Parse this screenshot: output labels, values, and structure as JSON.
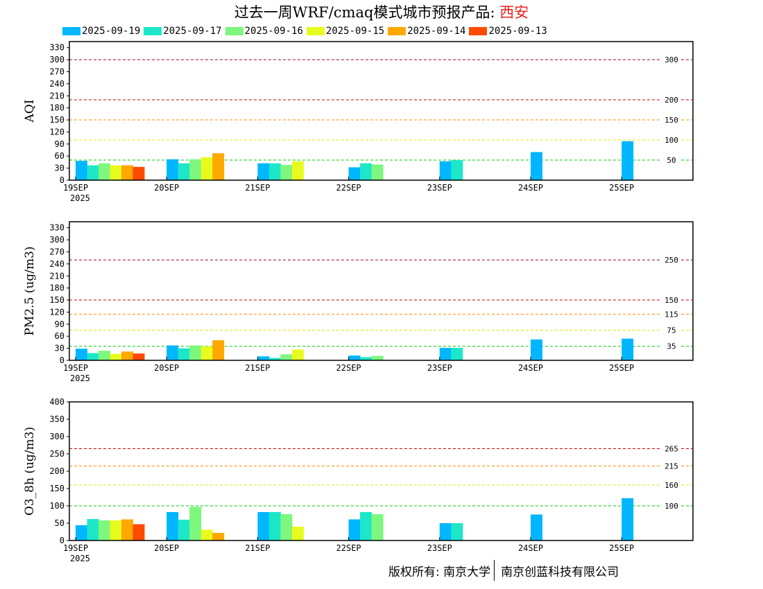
{
  "title": {
    "prefix": "过去一周WRF/cmaq模式城市预报产品: ",
    "city": "西安"
  },
  "legend": [
    {
      "label": "2025-09-19",
      "color": "#00b7ff"
    },
    {
      "label": "2025-09-17",
      "color": "#1de7c9"
    },
    {
      "label": "2025-09-16",
      "color": "#7df77d"
    },
    {
      "label": "2025-09-15",
      "color": "#e8fb1e"
    },
    {
      "label": "2025-09-14",
      "color": "#ffa800"
    },
    {
      "label": "2025-09-13",
      "color": "#ff4a00"
    }
  ],
  "footer": {
    "left": "版权所有: 南京大学",
    "right": "南京创蓝科技有限公司"
  },
  "chart_data": [
    {
      "type": "bar",
      "ylabel": "AQI",
      "ylim": [
        0,
        345
      ],
      "yticks": [
        0,
        30,
        60,
        90,
        120,
        150,
        180,
        210,
        240,
        270,
        300,
        330
      ],
      "categories": [
        "19SEP",
        "20SEP",
        "21SEP",
        "22SEP",
        "23SEP",
        "24SEP",
        "25SEP"
      ],
      "first_date_year": "2025",
      "thresholds": [
        {
          "value": 50,
          "label": "50",
          "color": "#00cc00"
        },
        {
          "value": 100,
          "label": "100",
          "color": "#e6e600"
        },
        {
          "value": 150,
          "label": "150",
          "color": "#ff8c00"
        },
        {
          "value": 200,
          "label": "200",
          "color": "#cc0000"
        },
        {
          "value": 300,
          "label": "300",
          "color": "#990044"
        }
      ],
      "series": [
        {
          "name": "2025-09-19",
          "values": [
            48,
            52,
            42,
            32,
            47,
            70,
            97
          ]
        },
        {
          "name": "2025-09-17",
          "values": [
            37,
            42,
            42,
            42,
            50,
            null,
            null
          ]
        },
        {
          "name": "2025-09-16",
          "values": [
            42,
            52,
            38,
            39,
            null,
            null,
            null
          ]
        },
        {
          "name": "2025-09-15",
          "values": [
            37,
            57,
            47,
            null,
            null,
            null,
            null
          ]
        },
        {
          "name": "2025-09-14",
          "values": [
            37,
            67,
            null,
            null,
            null,
            null,
            null
          ]
        },
        {
          "name": "2025-09-13",
          "values": [
            33,
            null,
            null,
            null,
            null,
            null,
            null
          ]
        }
      ]
    },
    {
      "type": "bar",
      "ylabel": "PM2.5 (ug/m3)",
      "ylim": [
        0,
        345
      ],
      "yticks": [
        0,
        30,
        60,
        90,
        120,
        150,
        180,
        210,
        240,
        270,
        300,
        330
      ],
      "categories": [
        "19SEP",
        "20SEP",
        "21SEP",
        "22SEP",
        "23SEP",
        "24SEP",
        "25SEP"
      ],
      "first_date_year": "2025",
      "thresholds": [
        {
          "value": 35,
          "label": "35",
          "color": "#00cc00"
        },
        {
          "value": 75,
          "label": "75",
          "color": "#e6e600"
        },
        {
          "value": 115,
          "label": "115",
          "color": "#ff8c00"
        },
        {
          "value": 150,
          "label": "150",
          "color": "#cc0000"
        },
        {
          "value": 250,
          "label": "250",
          "color": "#990044"
        }
      ],
      "series": [
        {
          "name": "2025-09-19",
          "values": [
            29,
            37,
            10,
            12,
            31,
            52,
            54
          ]
        },
        {
          "name": "2025-09-17",
          "values": [
            18,
            30,
            6,
            8,
            31,
            null,
            null
          ]
        },
        {
          "name": "2025-09-16",
          "values": [
            24,
            37,
            15,
            11,
            null,
            null,
            null
          ]
        },
        {
          "name": "2025-09-15",
          "values": [
            16,
            35,
            27,
            null,
            null,
            null,
            null
          ]
        },
        {
          "name": "2025-09-14",
          "values": [
            22,
            50,
            null,
            null,
            null,
            null,
            null
          ]
        },
        {
          "name": "2025-09-13",
          "values": [
            17,
            null,
            null,
            null,
            null,
            null,
            null
          ]
        }
      ]
    },
    {
      "type": "bar",
      "ylabel": "O3_8h (ug/m3)",
      "ylim": [
        0,
        400
      ],
      "yticks": [
        0,
        50,
        100,
        150,
        200,
        250,
        300,
        350,
        400
      ],
      "categories": [
        "19SEP",
        "20SEP",
        "21SEP",
        "22SEP",
        "23SEP",
        "24SEP",
        "25SEP"
      ],
      "first_date_year": "2025",
      "thresholds": [
        {
          "value": 100,
          "label": "100",
          "color": "#00cc00"
        },
        {
          "value": 160,
          "label": "160",
          "color": "#e6e600"
        },
        {
          "value": 215,
          "label": "215",
          "color": "#ff8c00"
        },
        {
          "value": 265,
          "label": "265",
          "color": "#cc0000"
        }
      ],
      "series": [
        {
          "name": "2025-09-19",
          "values": [
            44,
            82,
            82,
            61,
            50,
            75,
            122
          ]
        },
        {
          "name": "2025-09-17",
          "values": [
            62,
            60,
            82,
            82,
            50,
            null,
            null
          ]
        },
        {
          "name": "2025-09-16",
          "values": [
            58,
            97,
            76,
            76,
            null,
            null,
            null
          ]
        },
        {
          "name": "2025-09-15",
          "values": [
            58,
            31,
            40,
            null,
            null,
            null,
            null
          ]
        },
        {
          "name": "2025-09-14",
          "values": [
            61,
            22,
            null,
            null,
            null,
            null,
            null
          ]
        },
        {
          "name": "2025-09-13",
          "values": [
            47,
            null,
            null,
            null,
            null,
            null,
            null
          ]
        }
      ]
    }
  ]
}
